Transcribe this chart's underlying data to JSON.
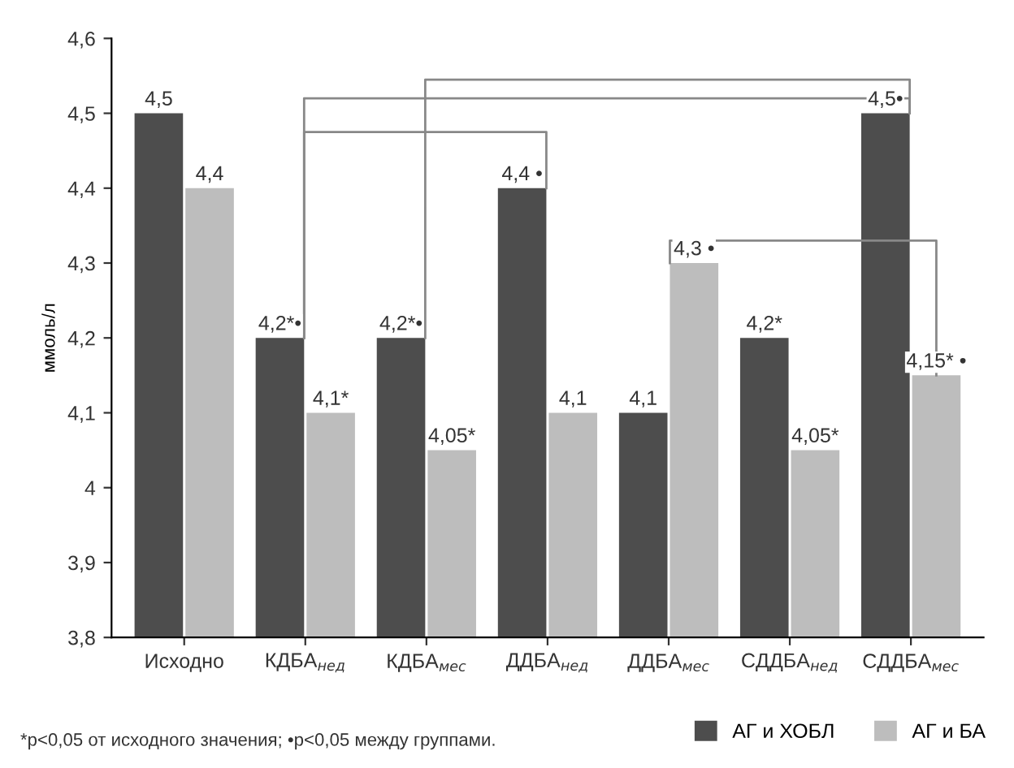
{
  "chart_data": {
    "type": "bar",
    "ylabel": "ммоль/л",
    "categories": [
      "Исходно",
      "КДБА$_{нед}$",
      "КДБА$_{мес}$",
      "ДДБА$_{нед}$",
      "ДДБА$_{мес}$",
      "СДДБА$_{нед}$",
      "СДДБА$_{мес}$"
    ],
    "series": [
      {
        "name": "АГ и ХОБЛ",
        "color": "#4d4d4d",
        "values": [
          4.5,
          4.2,
          4.2,
          4.4,
          4.1,
          4.2,
          4.5
        ],
        "value_labels": [
          "4,5",
          "4,2*•",
          "4,2*•",
          "4,4 •",
          "4,1",
          "4,2*",
          "4,5•"
        ]
      },
      {
        "name": "АГ и БА",
        "color": "#bdbdbd",
        "values": [
          4.4,
          4.1,
          4.05,
          4.1,
          4.3,
          4.05,
          4.15
        ],
        "value_labels": [
          "4,4",
          "4,1*",
          "4,05*",
          "4,1",
          "4,3 •",
          "4,05*",
          "4,15* •"
        ]
      }
    ],
    "ylim": [
      3.8,
      4.6
    ],
    "yticks": [
      {
        "value": 3.8,
        "label": "3,8"
      },
      {
        "value": 3.9,
        "label": "3,9"
      },
      {
        "value": 4.0,
        "label": "4"
      },
      {
        "value": 4.1,
        "label": "4,1"
      },
      {
        "value": 4.2,
        "label": "4,2"
      },
      {
        "value": 4.3,
        "label": "4,3"
      },
      {
        "value": 4.4,
        "label": "4,4"
      },
      {
        "value": 4.5,
        "label": "4,5"
      },
      {
        "value": 4.6,
        "label": "4,6"
      }
    ],
    "grid": false,
    "legend": "bottom right",
    "annotations": [
      "*p<0,05 от исходного значения; •p<0,05 между группами."
    ]
  }
}
